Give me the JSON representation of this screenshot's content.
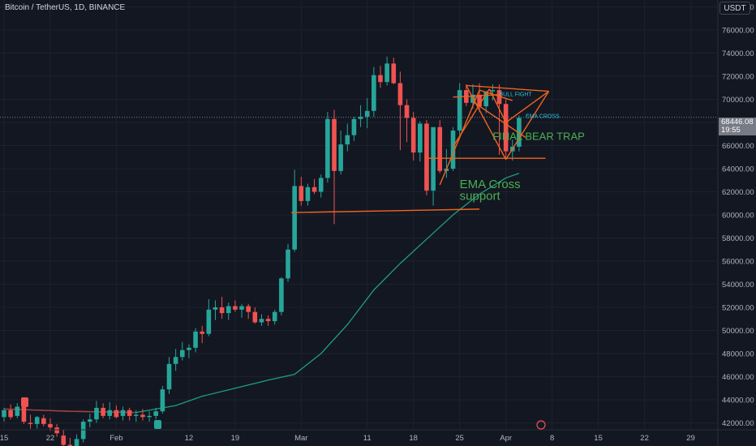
{
  "header": {
    "title": "Bitcoin / TetherUS, 1D, BINANCE",
    "currency": "USDT"
  },
  "price_tag": {
    "price": "68446.08",
    "countdown": "19:55"
  },
  "colors": {
    "background": "#131722",
    "up": "#26a69a",
    "down": "#ef5350",
    "ema": "#1e9e80",
    "drawing": "#f0641e",
    "annotation_green": "#4caf50",
    "annotation_cyan": "#26c6da"
  },
  "chart_data": {
    "type": "candlestick",
    "symbol": "Bitcoin / TetherUS",
    "timeframe": "1D",
    "exchange": "BINANCE",
    "ylim": [
      41400,
      78600
    ],
    "y_ticks": [
      42000,
      44000,
      46000,
      48000,
      50000,
      52000,
      54000,
      56000,
      58000,
      60000,
      62000,
      64000,
      66000,
      68000,
      70000,
      72000,
      74000,
      76000,
      78000
    ],
    "y_tick_labels": [
      "42000.00",
      "44000.00",
      "46000.00",
      "48000.00",
      "50000.00",
      "52000.00",
      "54000.00",
      "56000.00",
      "58000.00",
      "60000.00",
      "62000.00",
      "64000.00",
      "66000.00",
      "68000.00",
      "70000.00",
      "72000.00",
      "74000.00",
      "76000.00",
      "78000.00"
    ],
    "x_labels": [
      {
        "day": 0,
        "label": "15"
      },
      {
        "day": 7,
        "label": "22"
      },
      {
        "day": 17,
        "label": "Feb"
      },
      {
        "day": 28,
        "label": "12"
      },
      {
        "day": 35,
        "label": "19"
      },
      {
        "day": 45,
        "label": "Mar"
      },
      {
        "day": 55,
        "label": "11"
      },
      {
        "day": 62,
        "label": "18"
      },
      {
        "day": 69,
        "label": "25"
      },
      {
        "day": 76,
        "label": "Apr"
      },
      {
        "day": 83,
        "label": "8"
      },
      {
        "day": 90,
        "label": "15"
      },
      {
        "day": 97,
        "label": "22"
      },
      {
        "day": 104,
        "label": "29"
      }
    ],
    "candles": [
      {
        "day": 0,
        "o": 42500,
        "h": 43300,
        "l": 42100,
        "c": 43100
      },
      {
        "day": 1,
        "o": 43100,
        "h": 43600,
        "l": 42300,
        "c": 42500
      },
      {
        "day": 2,
        "o": 42600,
        "h": 43700,
        "l": 42400,
        "c": 43400
      },
      {
        "day": 3,
        "o": 43400,
        "h": 43500,
        "l": 41900,
        "c": 42100
      },
      {
        "day": 4,
        "o": 42000,
        "h": 42700,
        "l": 41500,
        "c": 41900
      },
      {
        "day": 5,
        "o": 41900,
        "h": 42600,
        "l": 41500,
        "c": 42500
      },
      {
        "day": 6,
        "o": 42400,
        "h": 42700,
        "l": 41700,
        "c": 41900
      },
      {
        "day": 7,
        "o": 41900,
        "h": 42400,
        "l": 41300,
        "c": 41600
      },
      {
        "day": 8,
        "o": 41600,
        "h": 41900,
        "l": 40800,
        "c": 41100
      },
      {
        "day": 9,
        "o": 40900,
        "h": 41400,
        "l": 39800,
        "c": 40100
      },
      {
        "day": 10,
        "o": 40100,
        "h": 40700,
        "l": 39500,
        "c": 40000
      },
      {
        "day": 11,
        "o": 40000,
        "h": 41000,
        "l": 39600,
        "c": 40600
      },
      {
        "day": 12,
        "o": 40600,
        "h": 42300,
        "l": 40300,
        "c": 42100
      },
      {
        "day": 13,
        "o": 42100,
        "h": 42800,
        "l": 41600,
        "c": 42300
      },
      {
        "day": 14,
        "o": 42300,
        "h": 43900,
        "l": 42000,
        "c": 43300
      },
      {
        "day": 15,
        "o": 43300,
        "h": 43700,
        "l": 42400,
        "c": 42600
      },
      {
        "day": 16,
        "o": 42600,
        "h": 43800,
        "l": 42300,
        "c": 43100
      },
      {
        "day": 17,
        "o": 43100,
        "h": 43500,
        "l": 42400,
        "c": 42500
      },
      {
        "day": 18,
        "o": 42600,
        "h": 43400,
        "l": 42200,
        "c": 43100
      },
      {
        "day": 19,
        "o": 43100,
        "h": 43300,
        "l": 42200,
        "c": 42600
      },
      {
        "day": 20,
        "o": 42600,
        "h": 43100,
        "l": 42100,
        "c": 42700
      },
      {
        "day": 21,
        "o": 42700,
        "h": 43200,
        "l": 42200,
        "c": 42500
      },
      {
        "day": 22,
        "o": 42500,
        "h": 43000,
        "l": 42100,
        "c": 42600
      },
      {
        "day": 23,
        "o": 42600,
        "h": 43300,
        "l": 42300,
        "c": 43000
      },
      {
        "day": 24,
        "o": 43000,
        "h": 45200,
        "l": 42800,
        "c": 44900
      },
      {
        "day": 25,
        "o": 44900,
        "h": 47700,
        "l": 44500,
        "c": 47100
      },
      {
        "day": 26,
        "o": 47100,
        "h": 48400,
        "l": 46500,
        "c": 47700
      },
      {
        "day": 27,
        "o": 47700,
        "h": 49000,
        "l": 47400,
        "c": 48300
      },
      {
        "day": 28,
        "o": 48300,
        "h": 48800,
        "l": 47600,
        "c": 48500
      },
      {
        "day": 29,
        "o": 48500,
        "h": 50200,
        "l": 48100,
        "c": 49900
      },
      {
        "day": 30,
        "o": 49900,
        "h": 50400,
        "l": 48900,
        "c": 49700
      },
      {
        "day": 31,
        "o": 49700,
        "h": 52700,
        "l": 49500,
        "c": 51800
      },
      {
        "day": 32,
        "o": 51800,
        "h": 52600,
        "l": 50900,
        "c": 52000
      },
      {
        "day": 33,
        "o": 52000,
        "h": 52900,
        "l": 51000,
        "c": 51500
      },
      {
        "day": 34,
        "o": 51500,
        "h": 52400,
        "l": 50900,
        "c": 52100
      },
      {
        "day": 35,
        "o": 52100,
        "h": 52600,
        "l": 51600,
        "c": 51800
      },
      {
        "day": 36,
        "o": 51800,
        "h": 52300,
        "l": 51100,
        "c": 52100
      },
      {
        "day": 37,
        "o": 52100,
        "h": 52300,
        "l": 51000,
        "c": 51600
      },
      {
        "day": 38,
        "o": 51600,
        "h": 52000,
        "l": 50600,
        "c": 50700
      },
      {
        "day": 39,
        "o": 50700,
        "h": 51400,
        "l": 50400,
        "c": 51000
      },
      {
        "day": 40,
        "o": 51000,
        "h": 51300,
        "l": 50400,
        "c": 50800
      },
      {
        "day": 41,
        "o": 50800,
        "h": 51800,
        "l": 50500,
        "c": 51600
      },
      {
        "day": 42,
        "o": 51600,
        "h": 54600,
        "l": 51300,
        "c": 54500
      },
      {
        "day": 43,
        "o": 54500,
        "h": 57500,
        "l": 54200,
        "c": 57000
      },
      {
        "day": 44,
        "o": 57000,
        "h": 63900,
        "l": 56800,
        "c": 62500
      },
      {
        "day": 45,
        "o": 62500,
        "h": 63300,
        "l": 60800,
        "c": 61200
      },
      {
        "day": 46,
        "o": 61200,
        "h": 62700,
        "l": 60800,
        "c": 62400
      },
      {
        "day": 47,
        "o": 62400,
        "h": 63100,
        "l": 61800,
        "c": 62000
      },
      {
        "day": 48,
        "o": 62000,
        "h": 63500,
        "l": 61500,
        "c": 63200
      },
      {
        "day": 49,
        "o": 63200,
        "h": 68900,
        "l": 62800,
        "c": 68300
      },
      {
        "day": 50,
        "o": 68300,
        "h": 69100,
        "l": 59200,
        "c": 63800
      },
      {
        "day": 51,
        "o": 63800,
        "h": 67300,
        "l": 63500,
        "c": 66100
      },
      {
        "day": 52,
        "o": 66100,
        "h": 67900,
        "l": 65500,
        "c": 66900
      },
      {
        "day": 53,
        "o": 66900,
        "h": 68500,
        "l": 66400,
        "c": 68300
      },
      {
        "day": 54,
        "o": 68300,
        "h": 69500,
        "l": 67600,
        "c": 68500
      },
      {
        "day": 55,
        "o": 68500,
        "h": 70100,
        "l": 67500,
        "c": 69000
      },
      {
        "day": 56,
        "o": 69000,
        "h": 72800,
        "l": 68500,
        "c": 72100
      },
      {
        "day": 57,
        "o": 72100,
        "h": 72900,
        "l": 71000,
        "c": 71500
      },
      {
        "day": 58,
        "o": 71500,
        "h": 73700,
        "l": 71200,
        "c": 73100
      },
      {
        "day": 59,
        "o": 73100,
        "h": 73600,
        "l": 71300,
        "c": 71400
      },
      {
        "day": 60,
        "o": 71400,
        "h": 72400,
        "l": 65600,
        "c": 69500
      },
      {
        "day": 61,
        "o": 69500,
        "h": 70000,
        "l": 66300,
        "c": 68400
      },
      {
        "day": 62,
        "o": 68400,
        "h": 68900,
        "l": 64700,
        "c": 65400
      },
      {
        "day": 63,
        "o": 65400,
        "h": 68100,
        "l": 64600,
        "c": 67900
      },
      {
        "day": 64,
        "o": 67900,
        "h": 68200,
        "l": 61700,
        "c": 62100
      },
      {
        "day": 65,
        "o": 62100,
        "h": 67500,
        "l": 60800,
        "c": 67600
      },
      {
        "day": 66,
        "o": 67600,
        "h": 68200,
        "l": 63600,
        "c": 63800
      },
      {
        "day": 67,
        "o": 63800,
        "h": 65700,
        "l": 63200,
        "c": 64000
      },
      {
        "day": 68,
        "o": 64000,
        "h": 67600,
        "l": 63800,
        "c": 67300
      },
      {
        "day": 69,
        "o": 67300,
        "h": 71400,
        "l": 66900,
        "c": 70800
      },
      {
        "day": 70,
        "o": 70800,
        "h": 71300,
        "l": 69400,
        "c": 69700
      },
      {
        "day": 71,
        "o": 69700,
        "h": 71300,
        "l": 69200,
        "c": 70400
      },
      {
        "day": 72,
        "o": 70400,
        "h": 71400,
        "l": 68900,
        "c": 69400
      },
      {
        "day": 73,
        "o": 69400,
        "h": 70700,
        "l": 68800,
        "c": 70700
      },
      {
        "day": 74,
        "o": 70700,
        "h": 71300,
        "l": 69900,
        "c": 70800
      },
      {
        "day": 75,
        "o": 70800,
        "h": 71300,
        "l": 65200,
        "c": 69600
      },
      {
        "day": 76,
        "o": 69600,
        "h": 70000,
        "l": 64800,
        "c": 65500
      },
      {
        "day": 77,
        "o": 65500,
        "h": 66500,
        "l": 64700,
        "c": 65900
      },
      {
        "day": 78,
        "o": 65900,
        "h": 68600,
        "l": 65500,
        "c": 68400
      }
    ],
    "ema": [
      [
        0,
        43200
      ],
      [
        10,
        43000
      ],
      [
        20,
        42900
      ],
      [
        26,
        43500
      ],
      [
        30,
        44300
      ],
      [
        35,
        45000
      ],
      [
        40,
        45700
      ],
      [
        44,
        46200
      ],
      [
        48,
        48000
      ],
      [
        52,
        50500
      ],
      [
        56,
        53500
      ],
      [
        60,
        55800
      ],
      [
        64,
        57900
      ],
      [
        68,
        60000
      ],
      [
        72,
        61800
      ],
      [
        76,
        63200
      ],
      [
        78,
        63600
      ]
    ],
    "annotations": {
      "texts": [
        "FINAL BEAR TRAP",
        "EMA Cross",
        "support",
        "BULL FIGHT",
        "EMA CROSS"
      ]
    }
  }
}
